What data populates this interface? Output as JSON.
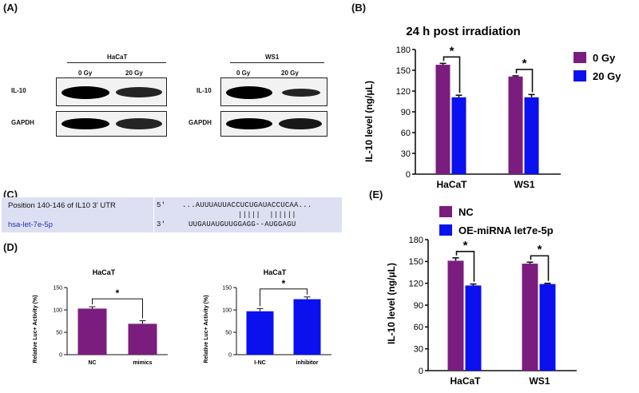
{
  "panels": {
    "A": "(A)",
    "B": "(B)",
    "C": "(C)",
    "D": "(D)",
    "E": "(E)"
  },
  "blots": {
    "left": {
      "cell": "HaCaT",
      "lanes": [
        "0 Gy",
        "20 Gy"
      ],
      "rows": [
        "IL-10",
        "GAPDH"
      ]
    },
    "right": {
      "cell": "WS1",
      "lanes": [
        "0 Gy",
        "20 Gy"
      ],
      "rows": [
        "IL-10",
        "GAPDH"
      ]
    }
  },
  "colors": {
    "purple": "#7b1d7e",
    "blue": "#0a10ee"
  },
  "sequence": {
    "utr_label": "Position 140-146 of IL10 3' UTR",
    "mirna_label": "hsa-let-7e-5p",
    "utr_prime": "5'",
    "utr_seq": "...AUUUAUUACCUCUGAUACCUCAA...",
    "pairing": "|||||  ||||||",
    "mirna_prime": "3'",
    "mirna_seq": "UUGAUAUGUUGGAGG--AUGGAGU"
  },
  "chart_data": [
    {
      "id": "B",
      "type": "bar",
      "title": "24 h post irradiation",
      "ylabel": "IL-10 level (ng/μL)",
      "xlabel": "",
      "ylim": [
        0,
        180
      ],
      "yticks": [
        "0",
        "30",
        "60",
        "90",
        "120",
        "150",
        "180"
      ],
      "categories": [
        "HaCaT",
        "WS1"
      ],
      "series": [
        {
          "name": "0 Gy",
          "values": [
            158,
            141
          ],
          "errors": [
            2,
            1
          ],
          "color": "#7b1d7e"
        },
        {
          "name": "20 Gy",
          "values": [
            111,
            111
          ],
          "errors": [
            3,
            4
          ],
          "color": "#0a10ee"
        }
      ],
      "significance": [
        "*",
        "*"
      ],
      "legend": "right"
    },
    {
      "id": "D1",
      "type": "bar",
      "title": "HaCaT",
      "ylabel": "Relative Luc+ Activity (%)",
      "ylim": [
        0,
        150
      ],
      "yticks": [
        "0",
        "50",
        "100",
        "150"
      ],
      "categories": [
        "NC",
        "mimics"
      ],
      "values": [
        103,
        69
      ],
      "errors": [
        4,
        7
      ],
      "color": "#7b1d7e",
      "significance": "*"
    },
    {
      "id": "D2",
      "type": "bar",
      "title": "HaCaT",
      "ylabel": "Relative Luc+ Activity (%)",
      "ylim": [
        0,
        150
      ],
      "yticks": [
        "0",
        "50",
        "100",
        "150"
      ],
      "categories": [
        "I-NC",
        "inhibitor"
      ],
      "values": [
        97,
        124
      ],
      "errors": [
        6,
        5
      ],
      "color": "#0a10ee",
      "significance": "*"
    },
    {
      "id": "E",
      "type": "bar",
      "title": "",
      "ylabel": "IL-10 level (ng/μL)",
      "ylim": [
        0,
        180
      ],
      "yticks": [
        "0",
        "30",
        "60",
        "90",
        "120",
        "150",
        "180"
      ],
      "categories": [
        "HaCaT",
        "WS1"
      ],
      "series": [
        {
          "name": "NC",
          "values": [
            151,
            147
          ],
          "errors": [
            4,
            2
          ],
          "color": "#7b1d7e"
        },
        {
          "name": "OE-miRNA let7e-5p",
          "values": [
            117,
            119
          ],
          "errors": [
            2,
            1
          ],
          "color": "#0a10ee"
        }
      ],
      "significance": [
        "*",
        "*"
      ],
      "legend": "top"
    }
  ]
}
